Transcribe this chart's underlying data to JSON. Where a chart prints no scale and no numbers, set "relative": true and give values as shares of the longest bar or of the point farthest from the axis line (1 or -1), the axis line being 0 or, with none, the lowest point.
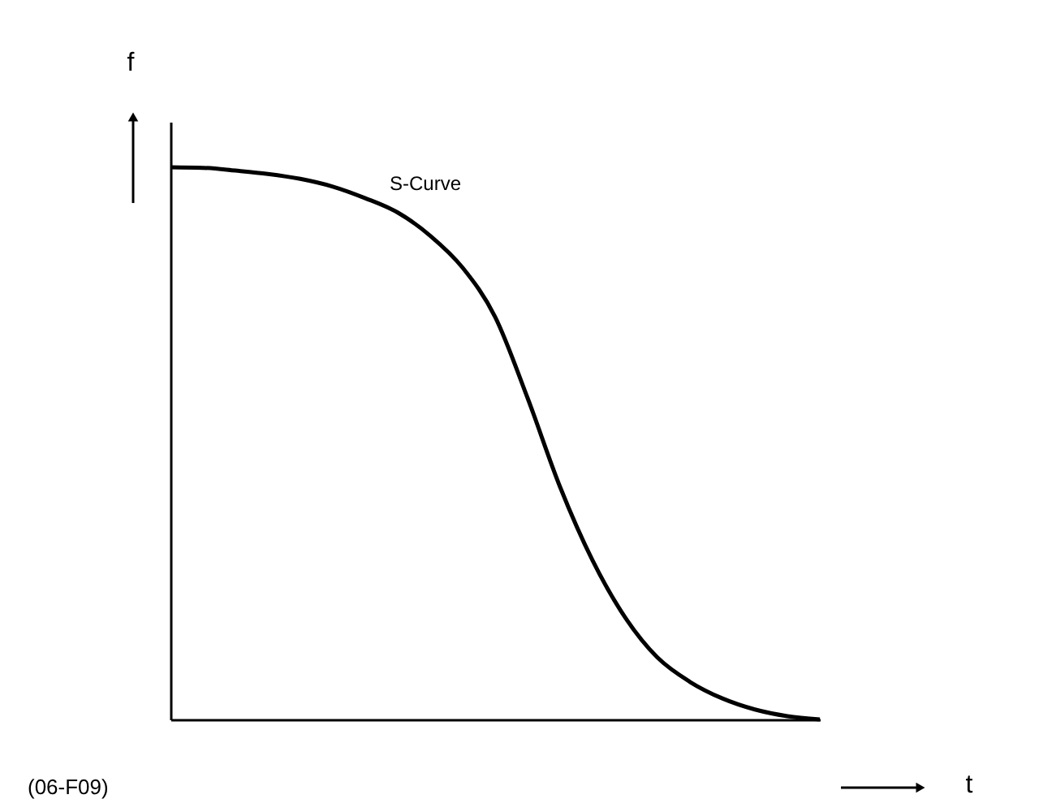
{
  "chart_data": {
    "type": "line",
    "relative": true,
    "ylabel": "f",
    "categories": [
      null,
      null,
      null,
      null,
      null,
      null,
      null,
      null,
      null,
      null,
      null,
      null,
      null,
      null,
      null,
      null,
      null,
      null,
      null,
      null,
      null
    ],
    "series": [
      {
        "name": "S-Curve",
        "color": "#000000",
        "values": [
          1.0,
          0.999,
          0.994,
          0.988,
          0.979,
          0.965,
          0.944,
          0.918,
          0.876,
          0.818,
          0.729,
          0.582,
          0.421,
          0.288,
          0.185,
          0.112,
          0.068,
          0.038,
          0.018,
          0.006,
          0.0
        ]
      }
    ],
    "annotations": [
      "(06-F09)",
      "t"
    ]
  }
}
